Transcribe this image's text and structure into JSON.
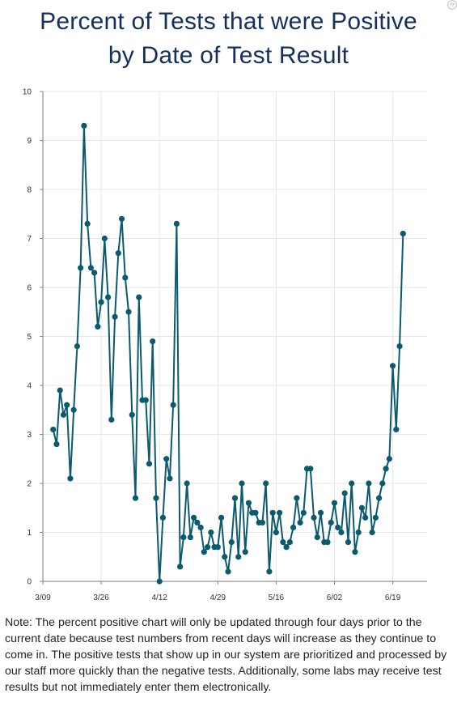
{
  "header": {
    "title_line1": "Percent of Tests that were Positive",
    "title_line2": "by Date of Test Result"
  },
  "note": {
    "text": "Note: The percent positive chart will only be updated through four days prior to the current date because test numbers from recent days will increase as they continue to come in. The positive tests that show up in our system are prioritized and processed by our staff more quickly than the negative tests. Additionally, some labs may receive test results but not immediately enter them electronically."
  },
  "chart_data": {
    "type": "line",
    "title": "Percent of Tests that were Positive by Date of Test Result",
    "xlabel": "",
    "ylabel": "",
    "x_tick_labels": [
      "3/09",
      "3/26",
      "4/12",
      "4/29",
      "5/16",
      "6/02",
      "6/19"
    ],
    "y_tick_labels": [
      "0",
      "1",
      "2",
      "3",
      "4",
      "5",
      "6",
      "7",
      "8",
      "9",
      "10"
    ],
    "ylim": [
      0,
      10
    ],
    "xlim_days_label": "2020-03-09 to 2020-06-29",
    "grid": true,
    "line_color": "#0b5a6e",
    "series": [
      {
        "values": [
          {
            "x": "3/12",
            "y": 3.1
          },
          {
            "x": "3/13",
            "y": 2.8
          },
          {
            "x": "3/14",
            "y": 3.9
          },
          {
            "x": "3/15",
            "y": 3.4
          },
          {
            "x": "3/16",
            "y": 3.6
          },
          {
            "x": "3/17",
            "y": 2.1
          },
          {
            "x": "3/18",
            "y": 3.5
          },
          {
            "x": "3/19",
            "y": 4.8
          },
          {
            "x": "3/20",
            "y": 6.4
          },
          {
            "x": "3/21",
            "y": 9.3
          },
          {
            "x": "3/22",
            "y": 7.3
          },
          {
            "x": "3/23",
            "y": 6.4
          },
          {
            "x": "3/24",
            "y": 6.3
          },
          {
            "x": "3/25",
            "y": 5.2
          },
          {
            "x": "3/26",
            "y": 5.7
          },
          {
            "x": "3/27",
            "y": 7.0
          },
          {
            "x": "3/28",
            "y": 5.8
          },
          {
            "x": "3/29",
            "y": 3.3
          },
          {
            "x": "3/30",
            "y": 5.4
          },
          {
            "x": "3/31",
            "y": 6.7
          },
          {
            "x": "4/01",
            "y": 7.4
          },
          {
            "x": "4/02",
            "y": 6.2
          },
          {
            "x": "4/03",
            "y": 5.5
          },
          {
            "x": "4/04",
            "y": 3.4
          },
          {
            "x": "4/05",
            "y": 1.7
          },
          {
            "x": "4/06",
            "y": 5.8
          },
          {
            "x": "4/07",
            "y": 3.7
          },
          {
            "x": "4/08",
            "y": 3.7
          },
          {
            "x": "4/09",
            "y": 2.4
          },
          {
            "x": "4/10",
            "y": 4.9
          },
          {
            "x": "4/11",
            "y": 1.7
          },
          {
            "x": "4/12",
            "y": 0.0
          },
          {
            "x": "4/13",
            "y": 1.3
          },
          {
            "x": "4/14",
            "y": 2.5
          },
          {
            "x": "4/15",
            "y": 2.1
          },
          {
            "x": "4/16",
            "y": 3.6
          },
          {
            "x": "4/17",
            "y": 7.3
          },
          {
            "x": "4/18",
            "y": 0.3
          },
          {
            "x": "4/19",
            "y": 0.9
          },
          {
            "x": "4/20",
            "y": 2.0
          },
          {
            "x": "4/21",
            "y": 0.9
          },
          {
            "x": "4/22",
            "y": 1.3
          },
          {
            "x": "4/23",
            "y": 1.2
          },
          {
            "x": "4/24",
            "y": 1.1
          },
          {
            "x": "4/25",
            "y": 0.6
          },
          {
            "x": "4/26",
            "y": 0.7
          },
          {
            "x": "4/27",
            "y": 1.0
          },
          {
            "x": "4/28",
            "y": 0.7
          },
          {
            "x": "4/29",
            "y": 0.7
          },
          {
            "x": "4/30",
            "y": 1.3
          },
          {
            "x": "5/01",
            "y": 0.5
          },
          {
            "x": "5/02",
            "y": 0.2
          },
          {
            "x": "5/03",
            "y": 0.8
          },
          {
            "x": "5/04",
            "y": 1.7
          },
          {
            "x": "5/05",
            "y": 0.5
          },
          {
            "x": "5/06",
            "y": 2.0
          },
          {
            "x": "5/07",
            "y": 0.6
          },
          {
            "x": "5/08",
            "y": 1.6
          },
          {
            "x": "5/09",
            "y": 1.4
          },
          {
            "x": "5/10",
            "y": 1.4
          },
          {
            "x": "5/11",
            "y": 1.2
          },
          {
            "x": "5/12",
            "y": 1.2
          },
          {
            "x": "5/13",
            "y": 2.0
          },
          {
            "x": "5/14",
            "y": 0.2
          },
          {
            "x": "5/15",
            "y": 1.4
          },
          {
            "x": "5/16",
            "y": 1.0
          },
          {
            "x": "5/17",
            "y": 1.4
          },
          {
            "x": "5/18",
            "y": 0.8
          },
          {
            "x": "5/19",
            "y": 0.7
          },
          {
            "x": "5/20",
            "y": 0.8
          },
          {
            "x": "5/21",
            "y": 1.1
          },
          {
            "x": "5/22",
            "y": 1.7
          },
          {
            "x": "5/23",
            "y": 1.2
          },
          {
            "x": "5/24",
            "y": 1.4
          },
          {
            "x": "5/25",
            "y": 2.3
          },
          {
            "x": "5/26",
            "y": 2.3
          },
          {
            "x": "5/27",
            "y": 1.3
          },
          {
            "x": "5/28",
            "y": 0.9
          },
          {
            "x": "5/29",
            "y": 1.4
          },
          {
            "x": "5/30",
            "y": 0.8
          },
          {
            "x": "5/31",
            "y": 0.8
          },
          {
            "x": "6/01",
            "y": 1.2
          },
          {
            "x": "6/02",
            "y": 1.6
          },
          {
            "x": "6/03",
            "y": 1.1
          },
          {
            "x": "6/04",
            "y": 1.0
          },
          {
            "x": "6/05",
            "y": 1.8
          },
          {
            "x": "6/06",
            "y": 0.8
          },
          {
            "x": "6/07",
            "y": 2.0
          },
          {
            "x": "6/08",
            "y": 0.6
          },
          {
            "x": "6/09",
            "y": 1.0
          },
          {
            "x": "6/10",
            "y": 1.5
          },
          {
            "x": "6/11",
            "y": 1.3
          },
          {
            "x": "6/12",
            "y": 2.0
          },
          {
            "x": "6/13",
            "y": 1.0
          },
          {
            "x": "6/14",
            "y": 1.3
          },
          {
            "x": "6/15",
            "y": 1.7
          },
          {
            "x": "6/16",
            "y": 2.0
          },
          {
            "x": "6/17",
            "y": 2.3
          },
          {
            "x": "6/18",
            "y": 2.5
          },
          {
            "x": "6/19",
            "y": 4.4
          },
          {
            "x": "6/20",
            "y": 3.1
          },
          {
            "x": "6/21",
            "y": 4.8
          },
          {
            "x": "6/22",
            "y": 7.1
          }
        ]
      }
    ]
  }
}
